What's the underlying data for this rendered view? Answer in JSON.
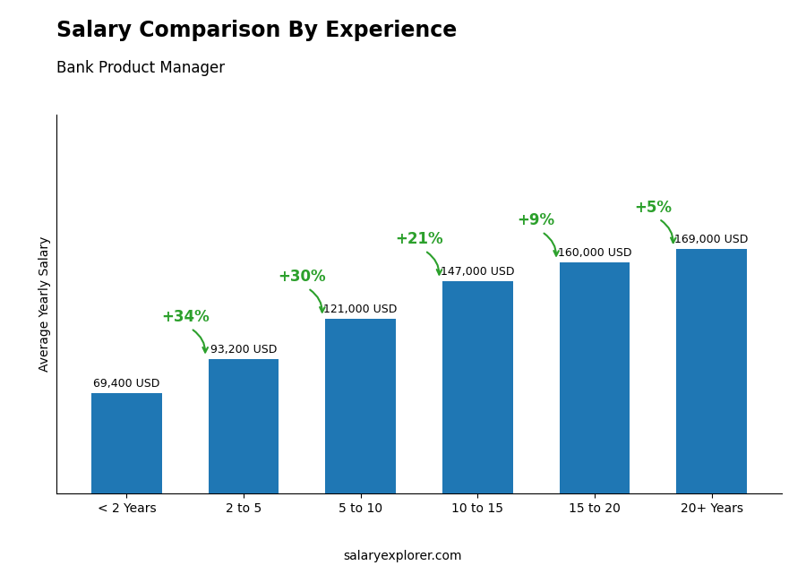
{
  "chart_data": {
    "type": "bar",
    "title": "Salary Comparison By Experience",
    "subtitle": "Bank Product Manager",
    "y_label": "Average Yearly Salary",
    "categories": [
      "< 2 Years",
      "2 to 5",
      "5 to 10",
      "10 to 15",
      "15 to 20",
      "20+ Years"
    ],
    "values": [
      69400,
      93200,
      121000,
      147000,
      160000,
      169000
    ],
    "value_labels": [
      "69,400 USD",
      "93,200 USD",
      "121,000 USD",
      "147,000 USD",
      "160,000 USD",
      "169,000 USD"
    ],
    "data_labels": true,
    "annotations": [
      "+34%",
      "+30%",
      "+21%",
      "+9%",
      "+5%"
    ],
    "source": "salaryexplorer.com",
    "ylim": [
      0,
      261950
    ],
    "tick_labels": "x",
    "grid": false
  }
}
